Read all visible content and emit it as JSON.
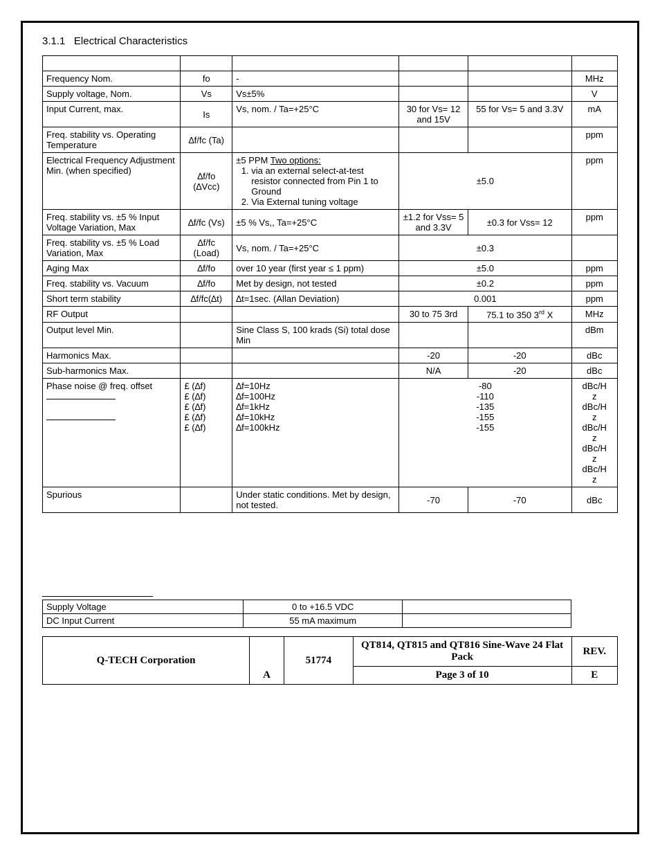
{
  "section": {
    "number": "3.1.1",
    "title": "Electrical Characteristics"
  },
  "table": {
    "rows": [
      {
        "param": "Frequency Nom.",
        "sym": "fo",
        "cond": "-",
        "v1": "",
        "v2": "",
        "unit": "MHz"
      },
      {
        "param": "Supply voltage, Nom.",
        "sym": "Vs",
        "cond": "Vs±5%",
        "v1": "",
        "v2": "",
        "unit": "V"
      },
      {
        "param": "Input Current, max.",
        "sym": "Is",
        "cond": "Vs, nom. / Ta=+25°C",
        "v1": "30 for Vs= 12 and 15V",
        "v2": "55 for Vs= 5 and 3.3V",
        "unit": "mA"
      },
      {
        "param": "Freq. stability vs. Operating Temperature",
        "sym": "∆f/fc (Ta)",
        "cond": "",
        "v1": "",
        "v2": "",
        "unit": "ppm"
      },
      {
        "param": "Electrical Frequency Adjustment Min. (when specified)",
        "sym": "∆f/fo (∆Vcc)",
        "cond_prefix": "±5 PPM ",
        "cond_link": "Two options:",
        "opt1": "via an external select-at-test resistor connected from Pin 1 to Ground",
        "opt2": "Via External tuning voltage",
        "span": "±5.0",
        "unit": "ppm"
      },
      {
        "param": "Freq. stability vs. ±5 % Input Voltage Variation, Max",
        "sym": "∆f/fc (Vs)",
        "cond": "±5 % Vs,, Ta=+25°C",
        "v1": "±1.2 for Vss= 5 and 3.3V",
        "v2": "±0.3 for Vss= 12",
        "unit": "ppm"
      },
      {
        "param": "Freq. stability vs. ±5 % Load Variation, Max",
        "sym": "∆f/fc (Load)",
        "cond": "Vs, nom. / Ta=+25°C",
        "span": "±0.3",
        "unit": ""
      },
      {
        "param": "Aging Max",
        "sym": "∆f/fo",
        "cond": "over 10 year (first year ≤ 1 ppm)",
        "span": "±5.0",
        "unit": "ppm"
      },
      {
        "param": "Freq. stability vs. Vacuum",
        "sym": "∆f/fo",
        "cond": "Met by design, not tested",
        "span": "±0.2",
        "unit": "ppm"
      },
      {
        "param": "Short term stability",
        "sym": "∆f/fc(∆t)",
        "cond": "∆t=1sec.  (Allan Deviation)",
        "span": "0.001",
        "unit": "ppm"
      },
      {
        "param": "RF Output",
        "sym": "",
        "cond": "",
        "v1": "30 to 75 3rd",
        "v2_pre": "75.1 to 350 3",
        "v2_sup": "rd",
        "v2_post": " X",
        "unit": "MHz"
      },
      {
        "param": "Output level  Min.",
        "sym": "",
        "cond": "Sine Class S, 100 krads (Si) total dose Min",
        "v1": "",
        "v2": "",
        "unit": "dBm"
      },
      {
        "param": "Harmonics Max.",
        "sym": "",
        "cond": "",
        "v1": "-20",
        "v2": "-20",
        "unit": "dBc"
      },
      {
        "param": "Sub-harmonics Max.",
        "sym": "",
        "cond": "",
        "v1": "N/A",
        "v2": "-20",
        "unit": "dBc"
      },
      {
        "param_text": "Phase noise @ freq. offset",
        "sym_lines": [
          "£ (∆f)",
          "£ (∆f)",
          "£ (∆f)",
          "£ (∆f)",
          "£ (∆f)"
        ],
        "cond_lines": [
          "∆f=10Hz",
          "∆f=100Hz",
          "∆f=1kHz",
          "∆f=10kHz",
          "∆f=100kHz"
        ],
        "span_lines": [
          "-80",
          "-110",
          "-135",
          "-155",
          "-155"
        ],
        "unit_lines": [
          "dBc/H",
          "z",
          "dBc/H",
          "z",
          "dBc/H",
          "z",
          "dBc/H",
          "z",
          "dBc/H",
          "z"
        ]
      },
      {
        "param": "Spurious",
        "sym": "",
        "cond": "Under static conditions.  Met by design, not tested.",
        "v1": "-70",
        "v2": "-70",
        "unit": "dBc"
      }
    ]
  },
  "aux": {
    "rows": [
      {
        "label": "Supply Voltage",
        "value": "0  to  +16.5  VDC",
        "extra": ""
      },
      {
        "label": "DC Input Current",
        "value": "55 mA maximum",
        "extra": ""
      }
    ]
  },
  "footer": {
    "company": "Q-TECH Corporation",
    "letter": "A",
    "docnum": "51774",
    "product": "QT814, QT815 and QT816 Sine-Wave 24 Flat Pack",
    "page": "Page 3 of 10",
    "rev_label": "REV.",
    "rev": "E"
  }
}
